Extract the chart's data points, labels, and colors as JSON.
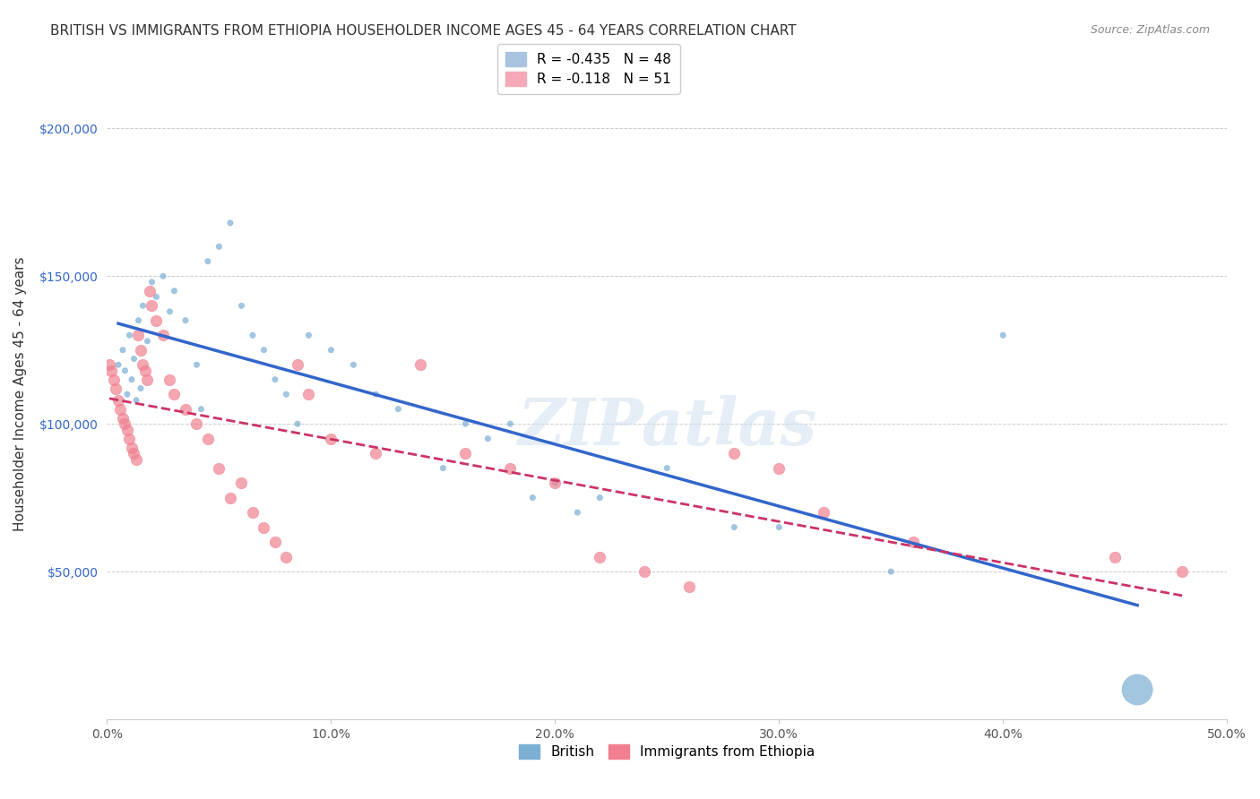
{
  "title": "BRITISH VS IMMIGRANTS FROM ETHIOPIA HOUSEHOLDER INCOME AGES 45 - 64 YEARS CORRELATION CHART",
  "source": "Source: ZipAtlas.com",
  "xlabel_bottom": "",
  "ylabel": "Householder Income Ages 45 - 64 years",
  "xmin": 0.0,
  "xmax": 0.5,
  "ymin": 0,
  "ymax": 220000,
  "yticks": [
    0,
    50000,
    100000,
    150000,
    200000
  ],
  "ytick_labels": [
    "",
    "$50,000",
    "$100,000",
    "$150,000",
    "$200,000"
  ],
  "xticks": [
    0.0,
    0.1,
    0.2,
    0.3,
    0.4,
    0.5
  ],
  "xtick_labels": [
    "0.0%",
    "10.0%",
    "20.0%",
    "30.0%",
    "40.0%",
    "50.0%"
  ],
  "legend_entries": [
    {
      "label": "British",
      "color": "#a8c4e0",
      "R": "-0.435",
      "N": "48"
    },
    {
      "label": "Immigrants from Ethiopia",
      "color": "#f4a8b8",
      "R": "-0.118",
      "N": "51"
    }
  ],
  "british_color": "#7bafd4",
  "ethiopia_color": "#f08090",
  "trendline_british_color": "#3366cc",
  "trendline_ethiopia_color": "#cc3366",
  "watermark": "ZIPatlas",
  "british_x": [
    0.005,
    0.007,
    0.008,
    0.009,
    0.01,
    0.011,
    0.012,
    0.013,
    0.014,
    0.015,
    0.016,
    0.018,
    0.02,
    0.022,
    0.025,
    0.028,
    0.03,
    0.035,
    0.04,
    0.042,
    0.045,
    0.05,
    0.055,
    0.06,
    0.065,
    0.07,
    0.075,
    0.08,
    0.085,
    0.09,
    0.1,
    0.11,
    0.12,
    0.13,
    0.15,
    0.16,
    0.17,
    0.18,
    0.19,
    0.2,
    0.21,
    0.22,
    0.25,
    0.28,
    0.3,
    0.35,
    0.4,
    0.46
  ],
  "british_y": [
    120000,
    125000,
    118000,
    110000,
    130000,
    115000,
    122000,
    108000,
    135000,
    112000,
    140000,
    128000,
    148000,
    143000,
    150000,
    138000,
    145000,
    135000,
    120000,
    105000,
    155000,
    160000,
    168000,
    140000,
    130000,
    125000,
    115000,
    110000,
    100000,
    130000,
    125000,
    120000,
    110000,
    105000,
    85000,
    100000,
    95000,
    100000,
    75000,
    80000,
    70000,
    75000,
    85000,
    65000,
    65000,
    50000,
    130000,
    10000
  ],
  "british_sizes": [
    20,
    20,
    20,
    20,
    20,
    20,
    20,
    20,
    20,
    20,
    20,
    20,
    20,
    20,
    20,
    20,
    20,
    20,
    20,
    20,
    20,
    20,
    20,
    20,
    20,
    20,
    20,
    20,
    20,
    20,
    20,
    20,
    20,
    20,
    20,
    20,
    20,
    20,
    20,
    20,
    20,
    20,
    20,
    20,
    20,
    20,
    20,
    600
  ],
  "ethiopia_x": [
    0.001,
    0.002,
    0.003,
    0.004,
    0.005,
    0.006,
    0.007,
    0.008,
    0.009,
    0.01,
    0.011,
    0.012,
    0.013,
    0.014,
    0.015,
    0.016,
    0.017,
    0.018,
    0.019,
    0.02,
    0.022,
    0.025,
    0.028,
    0.03,
    0.035,
    0.04,
    0.045,
    0.05,
    0.055,
    0.06,
    0.065,
    0.07,
    0.075,
    0.08,
    0.085,
    0.09,
    0.1,
    0.12,
    0.14,
    0.16,
    0.18,
    0.2,
    0.22,
    0.24,
    0.26,
    0.28,
    0.3,
    0.32,
    0.36,
    0.45,
    0.48
  ],
  "ethiopia_y": [
    120000,
    118000,
    115000,
    112000,
    108000,
    105000,
    102000,
    100000,
    98000,
    95000,
    92000,
    90000,
    88000,
    130000,
    125000,
    120000,
    118000,
    115000,
    145000,
    140000,
    135000,
    130000,
    115000,
    110000,
    105000,
    100000,
    95000,
    85000,
    75000,
    80000,
    70000,
    65000,
    60000,
    55000,
    120000,
    110000,
    95000,
    90000,
    120000,
    90000,
    85000,
    80000,
    55000,
    50000,
    45000,
    90000,
    85000,
    70000,
    60000,
    55000,
    50000
  ]
}
